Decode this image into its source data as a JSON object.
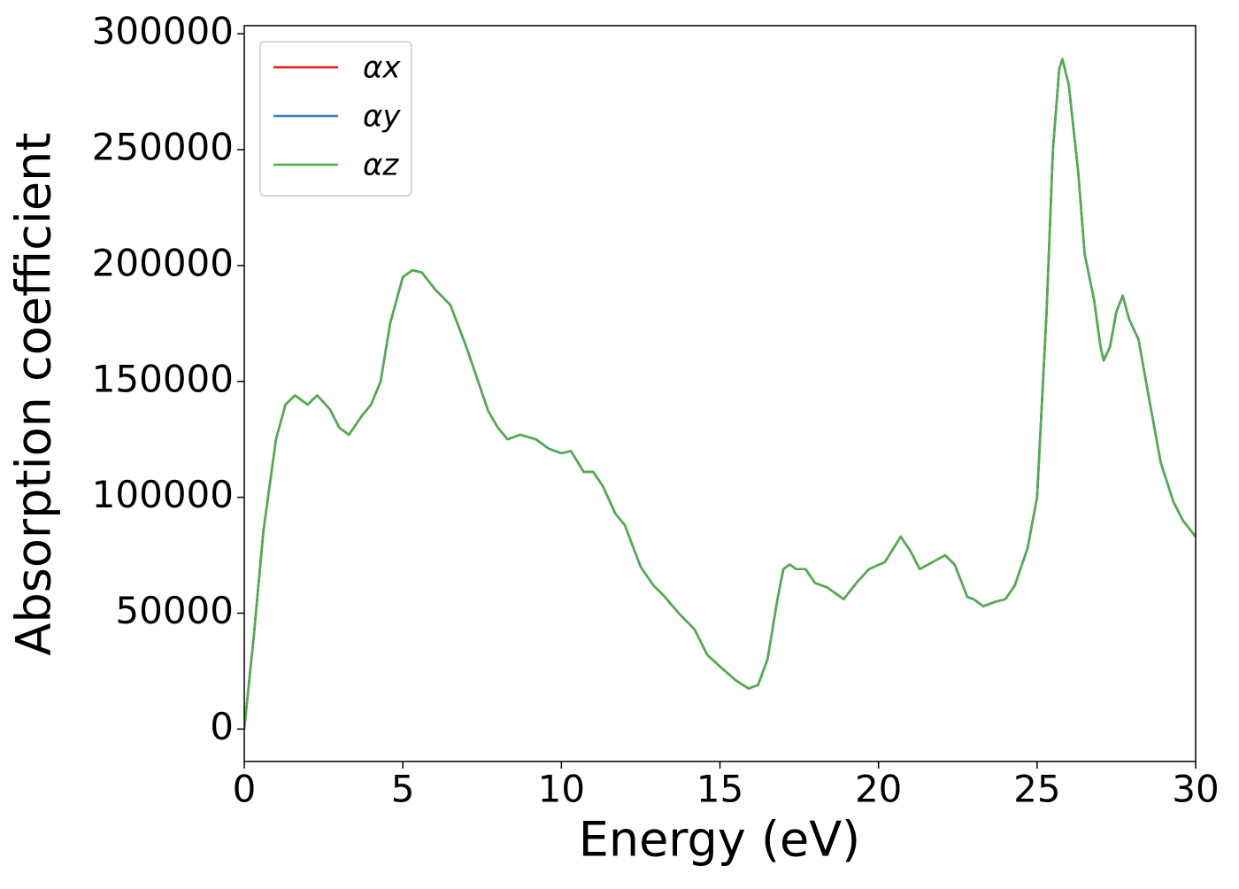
{
  "chart_data": {
    "type": "line",
    "xlabel": "Energy (eV)",
    "ylabel": "Absorption coefficient",
    "x": [
      0,
      0.3,
      0.6,
      1.0,
      1.3,
      1.6,
      2.0,
      2.3,
      2.7,
      3.0,
      3.3,
      3.7,
      4.0,
      4.3,
      4.6,
      5.0,
      5.3,
      5.6,
      6.0,
      6.5,
      7.0,
      7.5,
      7.7,
      8.0,
      8.3,
      8.7,
      9.2,
      9.6,
      10.0,
      10.3,
      10.7,
      11.0,
      11.3,
      11.7,
      12.0,
      12.5,
      12.9,
      13.2,
      13.7,
      14.2,
      14.6,
      15.0,
      15.5,
      15.9,
      16.2,
      16.5,
      16.8,
      17.0,
      17.2,
      17.4,
      17.7,
      18.0,
      18.4,
      18.9,
      19.3,
      19.7,
      20.2,
      20.7,
      21.0,
      21.3,
      21.7,
      22.1,
      22.4,
      22.8,
      23.0,
      23.3,
      23.7,
      24.0,
      24.3,
      24.7,
      25.0,
      25.3,
      25.5,
      25.7,
      25.8,
      26.0,
      26.3,
      26.5,
      26.8,
      27.0,
      27.1,
      27.3,
      27.5,
      27.7,
      27.9,
      28.2,
      28.5,
      28.9,
      29.3,
      29.6,
      30.0
    ],
    "series": [
      {
        "name": "αx",
        "color": "#e41a1c",
        "values": [
          0,
          40000,
          85000,
          125000,
          140000,
          144000,
          140000,
          144000,
          138000,
          130000,
          127000,
          135000,
          140000,
          150000,
          175000,
          195000,
          198000,
          197000,
          190000,
          183000,
          165000,
          145000,
          137000,
          130000,
          125000,
          127000,
          125000,
          121000,
          119000,
          120000,
          111000,
          111000,
          105000,
          93000,
          88000,
          70000,
          62000,
          58000,
          50000,
          43000,
          32000,
          27000,
          21000,
          17500,
          19000,
          30000,
          55000,
          69000,
          71000,
          69000,
          69000,
          63000,
          61000,
          56000,
          63000,
          69000,
          72000,
          83000,
          77000,
          69000,
          72000,
          75000,
          71000,
          57000,
          56000,
          53000,
          55000,
          56000,
          62000,
          78000,
          100000,
          180000,
          250000,
          285000,
          289000,
          278000,
          240000,
          205000,
          185000,
          165000,
          159000,
          165000,
          180000,
          187000,
          177000,
          168000,
          145000,
          115000,
          98000,
          90000,
          83000
        ]
      },
      {
        "name": "αy",
        "color": "#377eb8",
        "values": [
          0,
          40000,
          85000,
          125000,
          140000,
          144000,
          140000,
          144000,
          138000,
          130000,
          127000,
          135000,
          140000,
          150000,
          175000,
          195000,
          198000,
          197000,
          190000,
          183000,
          165000,
          145000,
          137000,
          130000,
          125000,
          127000,
          125000,
          121000,
          119000,
          120000,
          111000,
          111000,
          105000,
          93000,
          88000,
          70000,
          62000,
          58000,
          50000,
          43000,
          32000,
          27000,
          21000,
          17500,
          19000,
          30000,
          55000,
          69000,
          71000,
          69000,
          69000,
          63000,
          61000,
          56000,
          63000,
          69000,
          72000,
          83000,
          77000,
          69000,
          72000,
          75000,
          71000,
          57000,
          56000,
          53000,
          55000,
          56000,
          62000,
          78000,
          100000,
          180000,
          250000,
          285000,
          289000,
          278000,
          240000,
          205000,
          185000,
          165000,
          159000,
          165000,
          180000,
          187000,
          177000,
          168000,
          145000,
          115000,
          98000,
          90000,
          83000
        ]
      },
      {
        "name": "αz",
        "color": "#4daf4a",
        "values": [
          0,
          40000,
          85000,
          125000,
          140000,
          144000,
          140000,
          144000,
          138000,
          130000,
          127000,
          135000,
          140000,
          150000,
          175000,
          195000,
          198000,
          197000,
          190000,
          183000,
          165000,
          145000,
          137000,
          130000,
          125000,
          127000,
          125000,
          121000,
          119000,
          120000,
          111000,
          111000,
          105000,
          93000,
          88000,
          70000,
          62000,
          58000,
          50000,
          43000,
          32000,
          27000,
          21000,
          17500,
          19000,
          30000,
          55000,
          69000,
          71000,
          69000,
          69000,
          63000,
          61000,
          56000,
          63000,
          69000,
          72000,
          83000,
          77000,
          69000,
          72000,
          75000,
          71000,
          57000,
          56000,
          53000,
          55000,
          56000,
          62000,
          78000,
          100000,
          180000,
          250000,
          285000,
          289000,
          278000,
          240000,
          205000,
          185000,
          165000,
          159000,
          165000,
          180000,
          187000,
          177000,
          168000,
          145000,
          115000,
          98000,
          90000,
          83000
        ]
      }
    ],
    "xlim": [
      0,
      30
    ],
    "xticks": [
      0,
      5,
      10,
      15,
      20,
      25,
      30
    ],
    "ylim": [
      -14000,
      303500
    ],
    "yticks": [
      0,
      50000,
      100000,
      150000,
      200000,
      250000,
      300000
    ],
    "legend": "upper left"
  }
}
